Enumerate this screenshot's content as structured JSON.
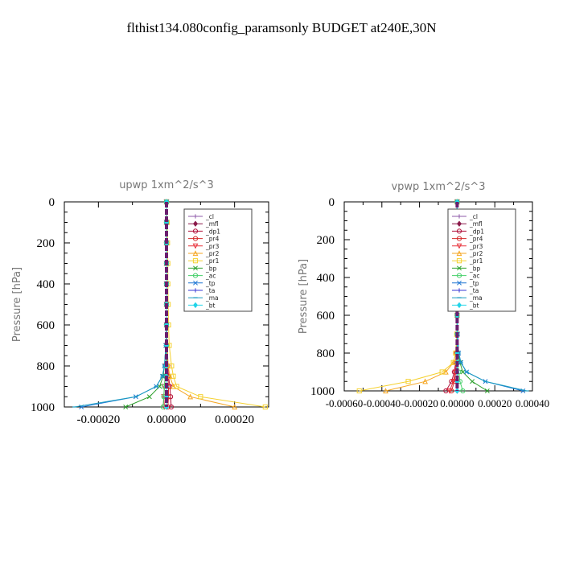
{
  "figure_title": "flthist134.080config_paramsonly  BUDGET at240E,30N",
  "chart_data": [
    {
      "type": "line",
      "title": "upwp   1xm^2/s^3",
      "ylabel": "Pressure  [hPa]",
      "xlabel": "",
      "xlim": [
        -0.0003,
        0.0003
      ],
      "ylim": [
        1000,
        0
      ],
      "xticks": [
        -0.0002,
        0.0,
        0.0002
      ],
      "xtick_labels": [
        "-0.00020",
        "0.00000",
        "0.00020"
      ],
      "yticks": [
        0,
        200,
        400,
        600,
        800,
        1000
      ],
      "ytick_labels": [
        "0",
        "200",
        "400",
        "600",
        "800",
        "1000"
      ],
      "legend_position": "upper-right",
      "series": [
        {
          "name": "_cl",
          "color": "#8e5aa8",
          "marker": "+",
          "x": [
            0,
            0,
            0,
            0,
            0,
            0,
            0,
            0,
            0,
            0,
            0,
            0,
            0
          ],
          "y": [
            0,
            100,
            200,
            300,
            400,
            500,
            600,
            700,
            800,
            850,
            900,
            950,
            1000
          ]
        },
        {
          "name": "_mfl",
          "color": "#8b1a4a",
          "marker": "diamond",
          "x": [
            0,
            0,
            0,
            0,
            0,
            0,
            0,
            0,
            0,
            0,
            0,
            0,
            0
          ],
          "y": [
            0,
            100,
            200,
            300,
            400,
            500,
            600,
            700,
            800,
            850,
            900,
            950,
            1000
          ]
        },
        {
          "name": "_dp1",
          "color": "#b0103a",
          "marker": "o",
          "x": [
            0,
            0,
            0,
            0,
            0,
            0,
            0,
            2e-06,
            4e-06,
            6e-06,
            1e-05,
            1.2e-05,
            1.4e-05
          ],
          "y": [
            0,
            100,
            200,
            300,
            400,
            500,
            600,
            700,
            800,
            850,
            900,
            950,
            1000
          ]
        },
        {
          "name": "_pr4",
          "color": "#d42a2a",
          "marker": "o",
          "x": [
            0,
            0,
            0,
            0,
            0,
            0,
            0,
            0,
            2e-06,
            4e-06,
            6e-06,
            6e-06,
            4e-06
          ],
          "y": [
            0,
            100,
            200,
            300,
            400,
            500,
            600,
            700,
            800,
            850,
            900,
            950,
            1000
          ]
        },
        {
          "name": "_pr3",
          "color": "#e8323c",
          "marker": "triangle-down",
          "x": [
            0,
            0,
            0,
            0,
            0,
            0,
            0,
            0,
            -2e-06,
            -4e-06,
            -6e-06,
            -8e-06,
            -6e-06
          ],
          "y": [
            0,
            100,
            200,
            300,
            400,
            500,
            600,
            700,
            800,
            850,
            900,
            950,
            1000
          ]
        },
        {
          "name": "_pr2",
          "color": "#f5a623",
          "marker": "triangle-up",
          "x": [
            0,
            0,
            0,
            0,
            0,
            0,
            0,
            2e-06,
            5e-06,
            1e-05,
            2e-05,
            7e-05,
            0.0002
          ],
          "y": [
            0,
            100,
            200,
            300,
            400,
            500,
            600,
            700,
            800,
            850,
            900,
            950,
            1000
          ]
        },
        {
          "name": "_pr1",
          "color": "#f5d130",
          "marker": "square",
          "x": [
            0,
            2e-06,
            3e-06,
            4e-06,
            4e-06,
            5e-06,
            6e-06,
            8e-06,
            1.5e-05,
            2e-05,
            3e-05,
            0.0001,
            0.00029
          ],
          "y": [
            0,
            100,
            200,
            300,
            400,
            500,
            600,
            700,
            800,
            850,
            900,
            950,
            1000
          ]
        },
        {
          "name": "_bp",
          "color": "#2ca02c",
          "marker": "x",
          "x": [
            0,
            0,
            0,
            0,
            0,
            0,
            0,
            -2e-06,
            -6e-06,
            -1e-05,
            -2e-05,
            -5e-05,
            -0.00012
          ],
          "y": [
            0,
            100,
            200,
            300,
            400,
            500,
            600,
            700,
            800,
            850,
            900,
            950,
            1000
          ]
        },
        {
          "name": "_ac",
          "color": "#45d06a",
          "marker": "o",
          "x": [
            0,
            0,
            0,
            0,
            0,
            0,
            0,
            0,
            -2e-06,
            -4e-06,
            -6e-06,
            -8e-06,
            -1e-05
          ],
          "y": [
            0,
            100,
            200,
            300,
            400,
            500,
            600,
            700,
            800,
            850,
            900,
            950,
            1000
          ]
        },
        {
          "name": "_tp",
          "color": "#1f77d4",
          "marker": "x",
          "x": [
            0,
            0,
            0,
            0,
            0,
            0,
            0,
            -2e-06,
            -6e-06,
            -1.2e-05,
            -3e-05,
            -9e-05,
            -0.00025
          ],
          "y": [
            0,
            100,
            200,
            300,
            400,
            500,
            600,
            700,
            800,
            850,
            900,
            950,
            1000
          ]
        },
        {
          "name": "_ta",
          "color": "#3a3ad6",
          "marker": "+",
          "x": [
            0,
            0,
            0,
            0,
            0,
            0,
            0,
            0,
            0,
            0,
            0,
            0,
            0
          ],
          "y": [
            0,
            100,
            200,
            300,
            400,
            500,
            600,
            700,
            800,
            850,
            900,
            950,
            1000
          ]
        },
        {
          "name": "_ma",
          "color": "#1a9cc0",
          "marker": "dash",
          "x": [
            0,
            0,
            0,
            0,
            0,
            0,
            0,
            -2e-06,
            -6e-06,
            -1.2e-05,
            -3e-05,
            -9e-05,
            -0.00027
          ],
          "y": [
            0,
            100,
            200,
            300,
            400,
            500,
            600,
            700,
            800,
            850,
            900,
            950,
            1000
          ]
        },
        {
          "name": "_bt",
          "color": "#22d4e8",
          "marker": "diamond",
          "x": [
            0,
            0,
            0,
            0,
            0,
            0,
            0,
            0,
            0,
            0,
            0,
            0,
            0
          ],
          "y": [
            0,
            100,
            200,
            300,
            400,
            500,
            600,
            700,
            800,
            850,
            900,
            950,
            1000
          ]
        }
      ]
    },
    {
      "type": "line",
      "title": "vpwp   1xm^2/s^3",
      "ylabel": "Pressure  [hPa]",
      "xlabel": "",
      "xlim": [
        -0.0006,
        0.0004
      ],
      "ylim": [
        1000,
        0
      ],
      "xticks": [
        -0.0006,
        -0.0004,
        -0.0002,
        0.0,
        0.0002,
        0.0004
      ],
      "xtick_labels": [
        "-0.00060",
        "-0.00040",
        "-0.00020",
        "0.00000",
        "0.00020",
        "0.00040"
      ],
      "yticks": [
        0,
        200,
        400,
        600,
        800,
        1000
      ],
      "ytick_labels": [
        "0",
        "200",
        "400",
        "600",
        "800",
        "1000"
      ],
      "legend_position": "upper-right",
      "series": [
        {
          "name": "_cl",
          "color": "#8e5aa8",
          "marker": "+",
          "x": [
            0,
            0,
            0,
            0,
            0,
            0,
            0,
            0,
            0,
            0,
            0,
            0,
            0
          ],
          "y": [
            0,
            100,
            200,
            300,
            400,
            500,
            600,
            700,
            800,
            850,
            900,
            950,
            1000
          ]
        },
        {
          "name": "_mfl",
          "color": "#8b1a4a",
          "marker": "diamond",
          "x": [
            0,
            0,
            0,
            0,
            0,
            0,
            0,
            0,
            0,
            0,
            0,
            0,
            0
          ],
          "y": [
            0,
            100,
            200,
            300,
            400,
            500,
            600,
            700,
            800,
            850,
            900,
            950,
            1000
          ]
        },
        {
          "name": "_dp1",
          "color": "#b0103a",
          "marker": "o",
          "x": [
            0,
            0,
            0,
            0,
            0,
            0,
            0,
            0,
            -4e-06,
            -8e-06,
            -1.5e-05,
            -3e-05,
            -6e-05
          ],
          "y": [
            0,
            100,
            200,
            300,
            400,
            500,
            600,
            700,
            800,
            850,
            900,
            950,
            1000
          ]
        },
        {
          "name": "_pr4",
          "color": "#d42a2a",
          "marker": "o",
          "x": [
            0,
            0,
            0,
            0,
            0,
            0,
            0,
            0,
            -2e-06,
            -4e-06,
            -8e-06,
            -1.5e-05,
            -3e-05
          ],
          "y": [
            0,
            100,
            200,
            300,
            400,
            500,
            600,
            700,
            800,
            850,
            900,
            950,
            1000
          ]
        },
        {
          "name": "_pr3",
          "color": "#e8323c",
          "marker": "triangle-down",
          "x": [
            0,
            0,
            0,
            0,
            0,
            0,
            0,
            0,
            -2e-06,
            -5e-06,
            -1e-05,
            -2e-05,
            -4e-05
          ],
          "y": [
            0,
            100,
            200,
            300,
            400,
            500,
            600,
            700,
            800,
            850,
            900,
            950,
            1000
          ]
        },
        {
          "name": "_pr2",
          "color": "#f5a623",
          "marker": "triangle-up",
          "x": [
            0,
            0,
            0,
            0,
            0,
            0,
            0,
            -2e-06,
            -6e-06,
            -2e-05,
            -6e-05,
            -0.00017,
            -0.00038
          ],
          "y": [
            0,
            100,
            200,
            300,
            400,
            500,
            600,
            700,
            800,
            850,
            900,
            950,
            1000
          ]
        },
        {
          "name": "_pr1",
          "color": "#f5d130",
          "marker": "square",
          "x": [
            0,
            0,
            0,
            0,
            0,
            0,
            0,
            -2e-06,
            -8e-06,
            -2e-05,
            -8e-05,
            -0.00026,
            -0.00052
          ],
          "y": [
            0,
            100,
            200,
            300,
            400,
            500,
            600,
            700,
            800,
            850,
            900,
            950,
            1000
          ]
        },
        {
          "name": "_bp",
          "color": "#2ca02c",
          "marker": "x",
          "x": [
            0,
            0,
            0,
            0,
            0,
            0,
            0,
            2e-06,
            6e-06,
            1.5e-05,
            3e-05,
            8e-05,
            0.00016
          ],
          "y": [
            0,
            100,
            200,
            300,
            400,
            500,
            600,
            700,
            800,
            850,
            900,
            950,
            1000
          ]
        },
        {
          "name": "_ac",
          "color": "#45d06a",
          "marker": "o",
          "x": [
            0,
            0,
            0,
            0,
            0,
            0,
            0,
            0,
            2e-06,
            4e-06,
            8e-06,
            1.5e-05,
            3e-05
          ],
          "y": [
            0,
            100,
            200,
            300,
            400,
            500,
            600,
            700,
            800,
            850,
            900,
            950,
            1000
          ]
        },
        {
          "name": "_tp",
          "color": "#1f77d4",
          "marker": "x",
          "x": [
            0,
            0,
            0,
            0,
            0,
            0,
            0,
            2e-06,
            8e-06,
            2e-05,
            5e-05,
            0.00015,
            0.00035
          ],
          "y": [
            0,
            100,
            200,
            300,
            400,
            500,
            600,
            700,
            800,
            850,
            900,
            950,
            1000
          ]
        },
        {
          "name": "_ta",
          "color": "#3a3ad6",
          "marker": "+",
          "x": [
            0,
            0,
            0,
            0,
            0,
            0,
            0,
            0,
            0,
            0,
            0,
            0,
            0
          ],
          "y": [
            0,
            100,
            200,
            300,
            400,
            500,
            600,
            700,
            800,
            850,
            900,
            950,
            1000
          ]
        },
        {
          "name": "_ma",
          "color": "#1a9cc0",
          "marker": "dash",
          "x": [
            0,
            0,
            0,
            0,
            0,
            0,
            0,
            2e-06,
            8e-06,
            2e-05,
            5e-05,
            0.00015,
            0.00037
          ],
          "y": [
            0,
            100,
            200,
            300,
            400,
            500,
            600,
            700,
            800,
            850,
            900,
            950,
            1000
          ]
        },
        {
          "name": "_bt",
          "color": "#22d4e8",
          "marker": "diamond",
          "x": [
            0,
            0,
            0,
            0,
            0,
            0,
            0,
            0,
            0,
            0,
            0,
            0,
            0
          ],
          "y": [
            0,
            100,
            200,
            300,
            400,
            500,
            600,
            700,
            800,
            850,
            900,
            950,
            1000
          ]
        }
      ]
    }
  ]
}
